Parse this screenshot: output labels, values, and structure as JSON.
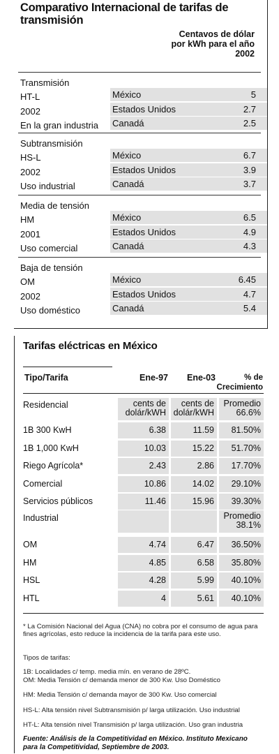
{
  "table1": {
    "title": "Comparativo Internacional de tarifas de transmisión",
    "unit_header": "Centavos de dólar por kWh para el año 2002",
    "groups": [
      {
        "labels": [
          "Transmisión",
          "HT-L",
          "2002",
          "En la gran industria"
        ],
        "rows": [
          {
            "country": "México",
            "value": "5"
          },
          {
            "country": "Estados Unidos",
            "value": "2.7"
          },
          {
            "country": "Canadá",
            "value": "2.5"
          }
        ]
      },
      {
        "labels": [
          "Subtransmisión",
          "HS-L",
          "2002",
          "Uso industrial"
        ],
        "rows": [
          {
            "country": "México",
            "value": "6.7"
          },
          {
            "country": "Estados Unidos",
            "value": "3.9"
          },
          {
            "country": "Canadá",
            "value": "3.7"
          }
        ]
      },
      {
        "labels": [
          "Media de tensión",
          "HM",
          "2001",
          "Uso comercial"
        ],
        "rows": [
          {
            "country": "México",
            "value": "6.5"
          },
          {
            "country": "Estados Unidos",
            "value": "4.9"
          },
          {
            "country": "Canadá",
            "value": "4.3"
          }
        ]
      },
      {
        "labels": [
          "Baja de tensión",
          "OM",
          "2002",
          "Uso doméstico"
        ],
        "rows": [
          {
            "country": "México",
            "value": "6.45"
          },
          {
            "country": "Estados Unidos",
            "value": "4.7"
          },
          {
            "country": "Canadá",
            "value": "5.4"
          }
        ]
      }
    ]
  },
  "table2": {
    "title": "Tarifas eléctricas en México",
    "headers": {
      "tipo": "Tipo/Tarifa",
      "ene97": "Ene-97",
      "ene03": "Ene-03",
      "crec": "% de Crecimiento"
    },
    "residencial": {
      "label": "Residencial",
      "unit97": "cents de dolár/kWH",
      "unit03": "cents de dolár/kWH",
      "promedio": "Promedio 66.6%"
    },
    "rows_a": [
      {
        "tarifa": "1B 300 KwH",
        "ene97": "6.38",
        "ene03": "11.59",
        "crec": "81.50%"
      },
      {
        "tarifa": "1B 1,000 KwH",
        "ene97": "10.03",
        "ene03": "15.22",
        "crec": "51.70%"
      },
      {
        "tarifa": "Riego Agrícola*",
        "ene97": "2.43",
        "ene03": "2.86",
        "crec": "17.70%"
      },
      {
        "tarifa": "Comercial",
        "ene97": "10.86",
        "ene03": "14.02",
        "crec": "29.10%"
      },
      {
        "tarifa": "Servicios públicos",
        "ene97": "11.46",
        "ene03": "15.96",
        "crec": "39.30%"
      }
    ],
    "industrial": {
      "label": "Industrial",
      "promedio": "Promedio 38.1%"
    },
    "rows_b": [
      {
        "tarifa": "OM",
        "ene97": "4.74",
        "ene03": "6.47",
        "crec": "36.50%"
      },
      {
        "tarifa": "HM",
        "ene97": "4.85",
        "ene03": "6.58",
        "crec": "35.80%"
      },
      {
        "tarifa": "HSL",
        "ene97": "4.28",
        "ene03": "5.99",
        "crec": "40.10%"
      },
      {
        "tarifa": "HTL",
        "ene97": "4",
        "ene03": "5.61",
        "crec": "40.10%"
      }
    ],
    "footnote": "* La Comisión Nacional del Agua (CNA) no cobra por el consumo de agua para fines agrícolas, esto reduce la incidencia de la tarifa para este uso.",
    "tipos_title": "Tipos de tarifas:",
    "tipos": [
      "1B: Localidades c/ temp. media mín. en verano de 28ºC.",
      "OM: Media Tensión c/ demanda menor de 300 Kw. Uso Doméstico",
      "HM: Media Tensión c/ demanda mayor de 300 Kw. Uso comercial",
      "HS-L: Alta tensión nivel Subtransmisión p/ larga utilización. Uso industrial",
      "HT-L: Alta tensión nivel Transmisión p/ larga utilización. Uso gran industria"
    ],
    "source": "Fuente: Análisis de la Competitividad en México. Instituto Mexicano para la Competitividad, Septiembre de 2003."
  }
}
